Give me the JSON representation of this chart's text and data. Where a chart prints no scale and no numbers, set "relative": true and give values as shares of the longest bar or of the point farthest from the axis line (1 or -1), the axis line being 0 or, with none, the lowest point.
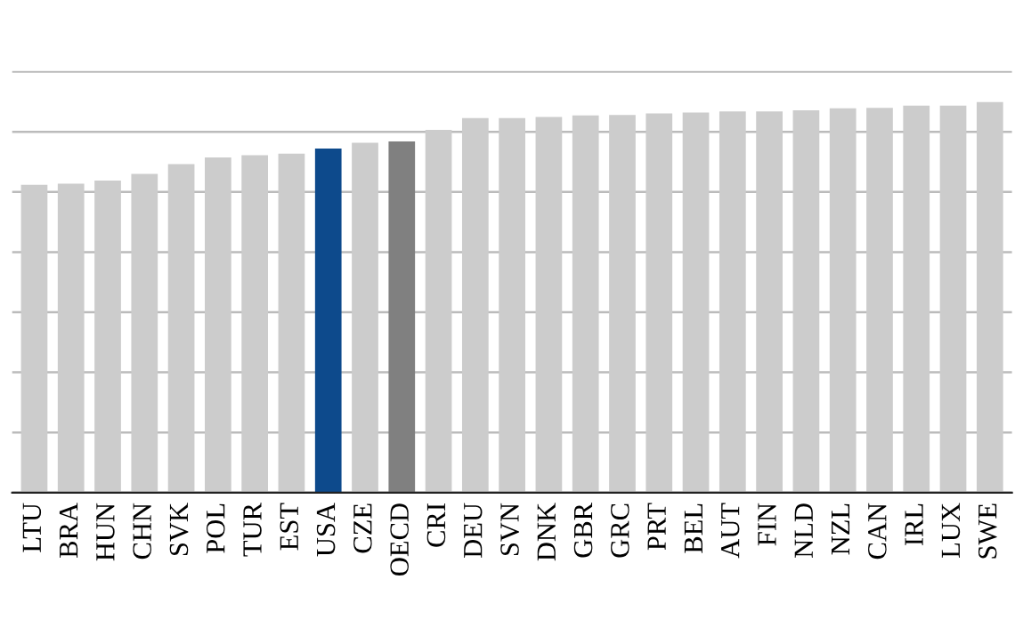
{
  "chart_data": {
    "type": "bar",
    "relative": true,
    "grid": "y",
    "categories": [
      "LTU",
      "BRA",
      "HUN",
      "CHN",
      "SVK",
      "POL",
      "TUR",
      "EST",
      "USA",
      "CZE",
      "OECD",
      "CRI",
      "DEU",
      "SVN",
      "DNK",
      "GBR",
      "GRC",
      "PRT",
      "BEL",
      "AUT",
      "FIN",
      "NLD",
      "NZL",
      "CAN",
      "IRL",
      "LUX",
      "SWE"
    ],
    "values": [
      0.788,
      0.791,
      0.799,
      0.816,
      0.841,
      0.858,
      0.864,
      0.868,
      0.881,
      0.896,
      0.899,
      0.929,
      0.959,
      0.959,
      0.962,
      0.966,
      0.967,
      0.971,
      0.973,
      0.976,
      0.976,
      0.979,
      0.984,
      0.985,
      0.991,
      0.991,
      1.0
    ],
    "colors": [
      "#cccccc",
      "#cccccc",
      "#cccccc",
      "#cccccc",
      "#cccccc",
      "#cccccc",
      "#cccccc",
      "#cccccc",
      "#0d4a8c",
      "#cccccc",
      "#808080",
      "#cccccc",
      "#cccccc",
      "#cccccc",
      "#cccccc",
      "#cccccc",
      "#cccccc",
      "#cccccc",
      "#cccccc",
      "#cccccc",
      "#cccccc",
      "#cccccc",
      "#cccccc",
      "#cccccc",
      "#cccccc",
      "#cccccc",
      "#cccccc"
    ]
  }
}
